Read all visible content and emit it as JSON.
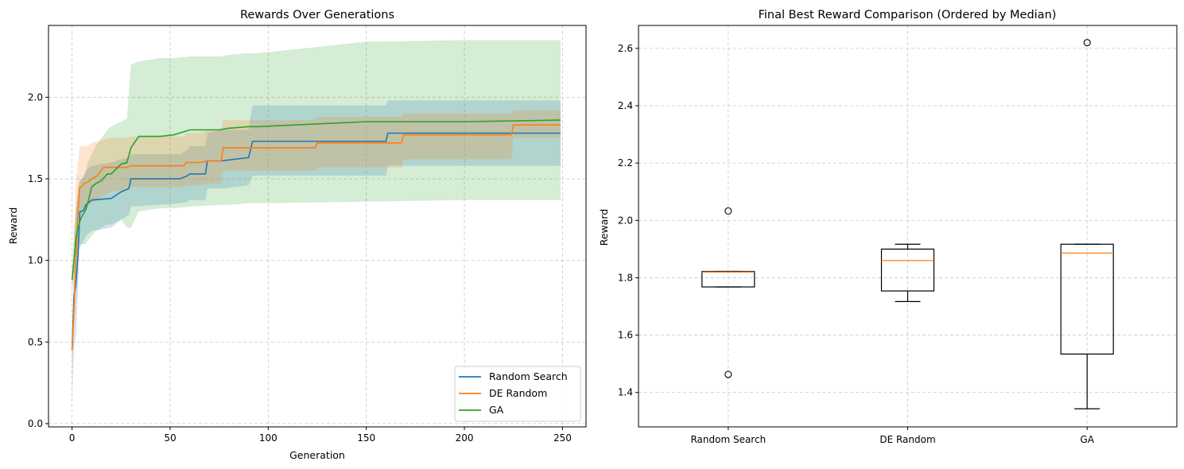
{
  "chart_data": [
    {
      "type": "line",
      "title": "Rewards Over Generations",
      "xlabel": "Generation",
      "ylabel": "Reward",
      "xlim": [
        -12,
        262
      ],
      "ylim": [
        -0.02,
        2.44
      ],
      "xticks": [
        0,
        50,
        100,
        150,
        200,
        250
      ],
      "yticks": [
        0.0,
        0.5,
        1.0,
        1.5,
        2.0
      ],
      "xtick_labels": [
        "0",
        "50",
        "100",
        "150",
        "200",
        "250"
      ],
      "ytick_labels": [
        "0.0",
        "0.5",
        "1.0",
        "1.5",
        "2.0"
      ],
      "grid": true,
      "legend": "lower-right",
      "series": [
        {
          "name": "Random Search",
          "color": "#1f77b4",
          "x": [
            0,
            1,
            2,
            3,
            4,
            5,
            6,
            7,
            10,
            20,
            25,
            29,
            30,
            55,
            59,
            60,
            68,
            69,
            76,
            90,
            92,
            93,
            160,
            161,
            249
          ],
          "y": [
            0.45,
            0.78,
            0.85,
            1.03,
            1.3,
            1.3,
            1.31,
            1.34,
            1.37,
            1.38,
            1.42,
            1.44,
            1.5,
            1.5,
            1.52,
            1.53,
            1.53,
            1.61,
            1.61,
            1.63,
            1.73,
            1.73,
            1.73,
            1.78,
            1.78
          ],
          "band_upper": [
            0.5,
            1.0,
            1.3,
            1.45,
            1.5,
            1.5,
            1.52,
            1.55,
            1.58,
            1.6,
            1.62,
            1.63,
            1.65,
            1.65,
            1.68,
            1.7,
            1.7,
            1.78,
            1.8,
            1.8,
            1.95,
            1.95,
            1.95,
            1.98,
            1.98
          ],
          "band_lower": [
            0.15,
            0.45,
            0.55,
            0.8,
            1.1,
            1.1,
            1.12,
            1.15,
            1.18,
            1.2,
            1.25,
            1.28,
            1.33,
            1.35,
            1.36,
            1.37,
            1.37,
            1.44,
            1.44,
            1.46,
            1.52,
            1.52,
            1.52,
            1.58,
            1.58
          ]
        },
        {
          "name": "DE Random",
          "color": "#ff7f0e",
          "x": [
            0,
            1,
            2,
            3,
            4,
            5,
            6,
            8,
            10,
            13,
            16,
            20,
            24,
            28,
            30,
            57,
            58,
            65,
            70,
            76,
            77,
            124,
            125,
            168,
            169,
            224,
            225,
            249
          ],
          "y": [
            0.45,
            0.7,
            1.0,
            1.3,
            1.45,
            1.45,
            1.47,
            1.48,
            1.5,
            1.52,
            1.57,
            1.57,
            1.57,
            1.57,
            1.58,
            1.58,
            1.6,
            1.6,
            1.61,
            1.61,
            1.69,
            1.69,
            1.72,
            1.72,
            1.77,
            1.77,
            1.83,
            1.83
          ],
          "band_upper": [
            0.5,
            1.1,
            1.5,
            1.6,
            1.7,
            1.7,
            1.7,
            1.7,
            1.72,
            1.73,
            1.74,
            1.75,
            1.75,
            1.75,
            1.76,
            1.76,
            1.78,
            1.78,
            1.8,
            1.8,
            1.86,
            1.86,
            1.88,
            1.88,
            1.9,
            1.9,
            1.92,
            1.92
          ],
          "band_lower": [
            0.35,
            0.55,
            0.8,
            1.1,
            1.3,
            1.3,
            1.32,
            1.34,
            1.35,
            1.37,
            1.4,
            1.42,
            1.43,
            1.43,
            1.45,
            1.45,
            1.46,
            1.46,
            1.47,
            1.47,
            1.55,
            1.55,
            1.57,
            1.57,
            1.62,
            1.62,
            1.75,
            1.75
          ]
        },
        {
          "name": "GA",
          "color": "#2ca02c",
          "x": [
            0,
            1,
            2,
            3,
            4,
            5,
            6,
            7,
            8,
            10,
            12,
            15,
            18,
            20,
            25,
            28,
            30,
            34,
            45,
            52,
            60,
            75,
            80,
            90,
            95,
            150,
            200,
            249
          ],
          "y": [
            0.88,
            1.0,
            1.14,
            1.2,
            1.24,
            1.27,
            1.29,
            1.31,
            1.35,
            1.45,
            1.47,
            1.49,
            1.53,
            1.53,
            1.59,
            1.6,
            1.69,
            1.76,
            1.76,
            1.77,
            1.8,
            1.8,
            1.81,
            1.82,
            1.82,
            1.85,
            1.85,
            1.86
          ],
          "band_upper": [
            0.95,
            1.2,
            1.3,
            1.4,
            1.48,
            1.5,
            1.52,
            1.54,
            1.6,
            1.65,
            1.7,
            1.75,
            1.8,
            1.82,
            1.85,
            1.87,
            2.2,
            2.22,
            2.24,
            2.24,
            2.25,
            2.25,
            2.26,
            2.27,
            2.27,
            2.34,
            2.35,
            2.35
          ],
          "band_lower": [
            0.82,
            0.9,
            1.0,
            1.05,
            1.08,
            1.1,
            1.1,
            1.1,
            1.12,
            1.15,
            1.18,
            1.2,
            1.22,
            1.22,
            1.25,
            1.2,
            1.2,
            1.3,
            1.32,
            1.32,
            1.33,
            1.34,
            1.34,
            1.35,
            1.35,
            1.36,
            1.37,
            1.37
          ]
        }
      ]
    },
    {
      "type": "box",
      "title": "Final Best Reward Comparison (Ordered by Median)",
      "xlabel": "",
      "ylabel": "Reward",
      "ylim": [
        1.28,
        2.68
      ],
      "yticks": [
        1.4,
        1.6,
        1.8,
        2.0,
        2.2,
        2.4,
        2.6
      ],
      "ytick_labels": [
        "1.4",
        "1.6",
        "1.8",
        "2.0",
        "2.2",
        "2.4",
        "2.6"
      ],
      "grid": true,
      "categories": [
        "Random Search",
        "DE Random",
        "GA"
      ],
      "boxes": [
        {
          "whisker_low": 1.768,
          "q1": 1.768,
          "median": 1.82,
          "q3": 1.822,
          "whisker_high": 1.822,
          "fliers": [
            2.033,
            1.463
          ]
        },
        {
          "whisker_low": 1.717,
          "q1": 1.754,
          "median": 1.86,
          "q3": 1.9,
          "whisker_high": 1.917,
          "fliers": []
        },
        {
          "whisker_low": 1.343,
          "q1": 1.534,
          "median": 1.886,
          "q3": 1.917,
          "whisker_high": 1.917,
          "fliers": [
            2.62
          ]
        }
      ],
      "box_color": "#000000",
      "median_color": "#ff7f0e"
    }
  ]
}
